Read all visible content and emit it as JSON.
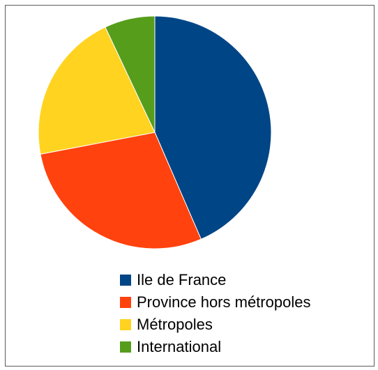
{
  "chart_data": {
    "type": "pie",
    "categories": [
      "Ile de France",
      "Province hors métropoles",
      "Métropoles",
      "International"
    ],
    "values": [
      43.5,
      28.5,
      21.0,
      7.0
    ],
    "unit": "",
    "colors": [
      "#004586",
      "#ff420e",
      "#ffd320",
      "#579d1c"
    ],
    "legend": {
      "placement": "bottom",
      "entries": [
        "Ile de France",
        "Province hors métropoles",
        "Métropoles",
        "International"
      ]
    },
    "title": "",
    "start_angle_deg": 0,
    "direction": "clockwise"
  }
}
